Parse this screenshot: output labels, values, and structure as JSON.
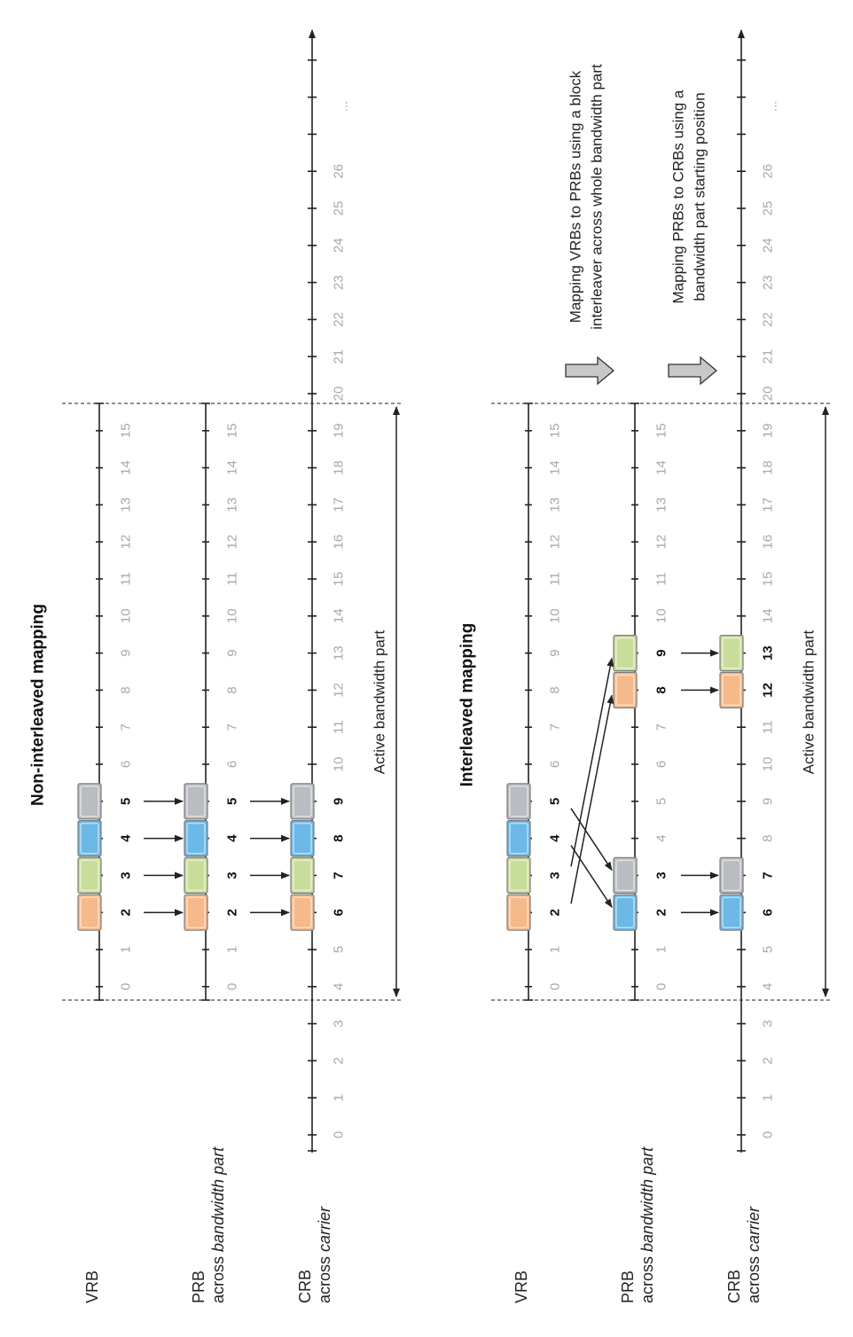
{
  "panels": [
    {
      "title": "Non-interleaved mapping",
      "rows": [
        {
          "label": "VRB",
          "sublabel": ""
        },
        {
          "label": "PRB",
          "sublabel_plain": "across ",
          "sublabel_italic": "bandwidth part"
        },
        {
          "label": "CRB",
          "sublabel_plain": "across ",
          "sublabel_italic": "carrier"
        }
      ],
      "bwp_label": "Active bandwidth part",
      "vrb_blocks": [
        2,
        3,
        4,
        5
      ],
      "prb_blocks": [
        2,
        3,
        4,
        5
      ],
      "crb_blocks": [
        6,
        7,
        8,
        9
      ]
    },
    {
      "title": "Interleaved mapping",
      "rows": [
        {
          "label": "VRB",
          "sublabel": ""
        },
        {
          "label": "PRB",
          "sublabel_plain": "across ",
          "sublabel_italic": "bandwidth part"
        },
        {
          "label": "CRB",
          "sublabel_plain": "across ",
          "sublabel_italic": "carrier"
        }
      ],
      "bwp_label": "Active bandwidth part",
      "note1_line1": "Mapping VRBs to PRBs using a block",
      "note1_line2": "interleaver across whole bandwidth part",
      "note2_line1": "Mapping PRBs to CRBs using a",
      "note2_line2": "bandwidth part starting position",
      "vrb_blocks": [
        2,
        3,
        4,
        5
      ],
      "prb_blocks": [
        2,
        3,
        8,
        9
      ],
      "crb_blocks": [
        6,
        7,
        12,
        13
      ]
    }
  ],
  "bwp_indices": [
    "0",
    "1",
    "2",
    "3",
    "4",
    "5",
    "6",
    "7",
    "8",
    "9",
    "10",
    "11",
    "12",
    "13",
    "14",
    "15"
  ],
  "crb_indices": [
    "0",
    "1",
    "2",
    "3",
    "4",
    "5",
    "6",
    "7",
    "8",
    "9",
    "10",
    "11",
    "12",
    "13",
    "14",
    "15",
    "16",
    "17",
    "18",
    "19",
    "20",
    "21",
    "22",
    "23",
    "24",
    "25",
    "26"
  ],
  "ellipsis": "...",
  "colors": {
    "orange": "#f5b98a",
    "green": "#c9dd9b",
    "blue": "#6cb8e6",
    "grey": "#b9bcc1",
    "arrow_fill": "#c8c8c8"
  }
}
